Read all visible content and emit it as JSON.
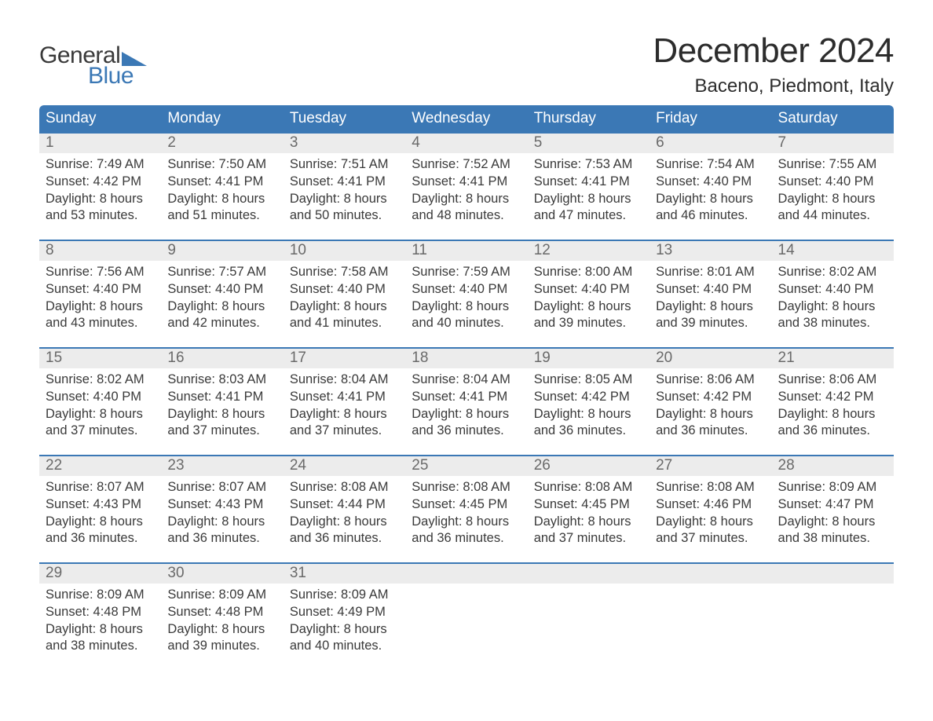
{
  "brand": {
    "word1": "General",
    "word2": "Blue",
    "accent_color": "#3b78b5"
  },
  "title": "December 2024",
  "location": "Baceno, Piedmont, Italy",
  "columns": [
    "Sunday",
    "Monday",
    "Tuesday",
    "Wednesday",
    "Thursday",
    "Friday",
    "Saturday"
  ],
  "colors": {
    "header_bg": "#3b78b5",
    "header_text": "#ffffff",
    "daynum_bg": "#ececec",
    "daynum_text": "#6a6a6a",
    "body_text": "#3a3a3a",
    "week_divider": "#3b78b5",
    "page_bg": "#ffffff"
  },
  "fonts": {
    "title_size_pt": 33,
    "location_size_pt": 18,
    "header_size_pt": 14,
    "daynum_size_pt": 14,
    "body_size_pt": 12
  },
  "field_labels": {
    "sunrise": "Sunrise",
    "sunset": "Sunset",
    "daylight": "Daylight"
  },
  "weeks": [
    [
      {
        "n": "1",
        "sunrise": "7:49 AM",
        "sunset": "4:42 PM",
        "dl1": "8 hours",
        "dl2": "and 53 minutes."
      },
      {
        "n": "2",
        "sunrise": "7:50 AM",
        "sunset": "4:41 PM",
        "dl1": "8 hours",
        "dl2": "and 51 minutes."
      },
      {
        "n": "3",
        "sunrise": "7:51 AM",
        "sunset": "4:41 PM",
        "dl1": "8 hours",
        "dl2": "and 50 minutes."
      },
      {
        "n": "4",
        "sunrise": "7:52 AM",
        "sunset": "4:41 PM",
        "dl1": "8 hours",
        "dl2": "and 48 minutes."
      },
      {
        "n": "5",
        "sunrise": "7:53 AM",
        "sunset": "4:41 PM",
        "dl1": "8 hours",
        "dl2": "and 47 minutes."
      },
      {
        "n": "6",
        "sunrise": "7:54 AM",
        "sunset": "4:40 PM",
        "dl1": "8 hours",
        "dl2": "and 46 minutes."
      },
      {
        "n": "7",
        "sunrise": "7:55 AM",
        "sunset": "4:40 PM",
        "dl1": "8 hours",
        "dl2": "and 44 minutes."
      }
    ],
    [
      {
        "n": "8",
        "sunrise": "7:56 AM",
        "sunset": "4:40 PM",
        "dl1": "8 hours",
        "dl2": "and 43 minutes."
      },
      {
        "n": "9",
        "sunrise": "7:57 AM",
        "sunset": "4:40 PM",
        "dl1": "8 hours",
        "dl2": "and 42 minutes."
      },
      {
        "n": "10",
        "sunrise": "7:58 AM",
        "sunset": "4:40 PM",
        "dl1": "8 hours",
        "dl2": "and 41 minutes."
      },
      {
        "n": "11",
        "sunrise": "7:59 AM",
        "sunset": "4:40 PM",
        "dl1": "8 hours",
        "dl2": "and 40 minutes."
      },
      {
        "n": "12",
        "sunrise": "8:00 AM",
        "sunset": "4:40 PM",
        "dl1": "8 hours",
        "dl2": "and 39 minutes."
      },
      {
        "n": "13",
        "sunrise": "8:01 AM",
        "sunset": "4:40 PM",
        "dl1": "8 hours",
        "dl2": "and 39 minutes."
      },
      {
        "n": "14",
        "sunrise": "8:02 AM",
        "sunset": "4:40 PM",
        "dl1": "8 hours",
        "dl2": "and 38 minutes."
      }
    ],
    [
      {
        "n": "15",
        "sunrise": "8:02 AM",
        "sunset": "4:40 PM",
        "dl1": "8 hours",
        "dl2": "and 37 minutes."
      },
      {
        "n": "16",
        "sunrise": "8:03 AM",
        "sunset": "4:41 PM",
        "dl1": "8 hours",
        "dl2": "and 37 minutes."
      },
      {
        "n": "17",
        "sunrise": "8:04 AM",
        "sunset": "4:41 PM",
        "dl1": "8 hours",
        "dl2": "and 37 minutes."
      },
      {
        "n": "18",
        "sunrise": "8:04 AM",
        "sunset": "4:41 PM",
        "dl1": "8 hours",
        "dl2": "and 36 minutes."
      },
      {
        "n": "19",
        "sunrise": "8:05 AM",
        "sunset": "4:42 PM",
        "dl1": "8 hours",
        "dl2": "and 36 minutes."
      },
      {
        "n": "20",
        "sunrise": "8:06 AM",
        "sunset": "4:42 PM",
        "dl1": "8 hours",
        "dl2": "and 36 minutes."
      },
      {
        "n": "21",
        "sunrise": "8:06 AM",
        "sunset": "4:42 PM",
        "dl1": "8 hours",
        "dl2": "and 36 minutes."
      }
    ],
    [
      {
        "n": "22",
        "sunrise": "8:07 AM",
        "sunset": "4:43 PM",
        "dl1": "8 hours",
        "dl2": "and 36 minutes."
      },
      {
        "n": "23",
        "sunrise": "8:07 AM",
        "sunset": "4:43 PM",
        "dl1": "8 hours",
        "dl2": "and 36 minutes."
      },
      {
        "n": "24",
        "sunrise": "8:08 AM",
        "sunset": "4:44 PM",
        "dl1": "8 hours",
        "dl2": "and 36 minutes."
      },
      {
        "n": "25",
        "sunrise": "8:08 AM",
        "sunset": "4:45 PM",
        "dl1": "8 hours",
        "dl2": "and 36 minutes."
      },
      {
        "n": "26",
        "sunrise": "8:08 AM",
        "sunset": "4:45 PM",
        "dl1": "8 hours",
        "dl2": "and 37 minutes."
      },
      {
        "n": "27",
        "sunrise": "8:08 AM",
        "sunset": "4:46 PM",
        "dl1": "8 hours",
        "dl2": "and 37 minutes."
      },
      {
        "n": "28",
        "sunrise": "8:09 AM",
        "sunset": "4:47 PM",
        "dl1": "8 hours",
        "dl2": "and 38 minutes."
      }
    ],
    [
      {
        "n": "29",
        "sunrise": "8:09 AM",
        "sunset": "4:48 PM",
        "dl1": "8 hours",
        "dl2": "and 38 minutes."
      },
      {
        "n": "30",
        "sunrise": "8:09 AM",
        "sunset": "4:48 PM",
        "dl1": "8 hours",
        "dl2": "and 39 minutes."
      },
      {
        "n": "31",
        "sunrise": "8:09 AM",
        "sunset": "4:49 PM",
        "dl1": "8 hours",
        "dl2": "and 40 minutes."
      },
      null,
      null,
      null,
      null
    ]
  ]
}
